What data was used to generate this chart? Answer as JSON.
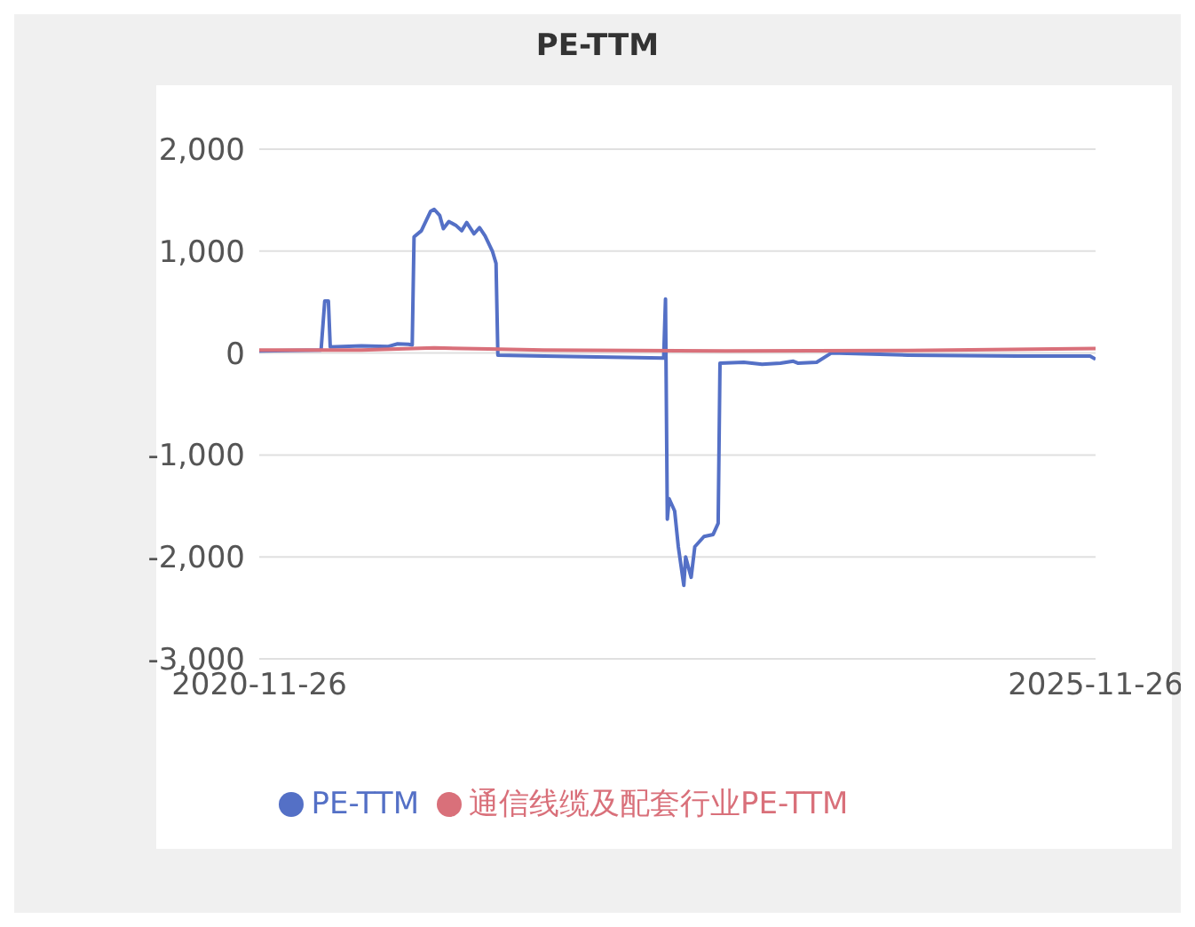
{
  "chart_data": {
    "type": "line",
    "title": "PE-TTM",
    "xlim": [
      "2020-11-26",
      "2025-11-26"
    ],
    "xticks": [
      "2020-11-26",
      "2025-11-26"
    ],
    "ylim": [
      -3000,
      2000
    ],
    "yticks": [
      {
        "value": -3000,
        "label": "-3,000"
      },
      {
        "value": -2000,
        "label": "-2,000"
      },
      {
        "value": -1000,
        "label": "-1,000"
      },
      {
        "value": 0,
        "label": "0"
      },
      {
        "value": 1000,
        "label": "1,000"
      },
      {
        "value": 2000,
        "label": "2,000"
      }
    ],
    "grid": "y",
    "legend": "bottom",
    "marker": "none",
    "line_style": "solid",
    "series": [
      {
        "name": "PE-TTM",
        "color": "#5470c6",
        "x": [
          "2020-11-26",
          "2021-04-10",
          "2021-04-18",
          "2021-04-26",
          "2021-04-30",
          "2021-07-07",
          "2021-09-04",
          "2021-09-24",
          "2021-10-18",
          "2021-10-26",
          "2021-10-30",
          "2021-11-15",
          "2021-12-05",
          "2021-12-13",
          "2021-12-25",
          "2022-01-02",
          "2022-01-14",
          "2022-01-30",
          "2022-02-11",
          "2022-02-22",
          "2022-03-10",
          "2022-03-22",
          "2022-04-03",
          "2022-04-19",
          "2022-04-27",
          "2022-05-01",
          "2022-08-09",
          "2023-04-28",
          "2023-05-02",
          "2023-05-06",
          "2023-05-10",
          "2023-05-22",
          "2023-05-30",
          "2023-06-11",
          "2023-06-15",
          "2023-06-27",
          "2023-07-05",
          "2023-07-25",
          "2023-08-14",
          "2023-08-25",
          "2023-08-29",
          "2023-10-20",
          "2023-11-29",
          "2024-01-08",
          "2024-02-05",
          "2024-02-16",
          "2024-03-27",
          "2024-04-28",
          "2024-10-12",
          "2025-06-08",
          "2025-11-14",
          "2025-11-26"
        ],
        "values": [
          20,
          30,
          510,
          510,
          60,
          70,
          65,
          90,
          85,
          80,
          1140,
          1200,
          1390,
          1410,
          1350,
          1220,
          1290,
          1250,
          1200,
          1280,
          1170,
          1230,
          1150,
          1000,
          880,
          -20,
          -30,
          -50,
          530,
          -1630,
          -1430,
          -1550,
          -1900,
          -2280,
          -2000,
          -2200,
          -1900,
          -1800,
          -1780,
          -1670,
          -100,
          -90,
          -110,
          -100,
          -80,
          -100,
          -90,
          0,
          -20,
          -30,
          -30,
          -60
        ]
      },
      {
        "name": "通信线缆及配套行业PE-TTM",
        "color": "#d9707a",
        "x": [
          "2020-11-26",
          "2021-07-07",
          "2021-12-13",
          "2022-04-11",
          "2022-08-09",
          "2023-09-10",
          "2024-10-12",
          "2025-08-26",
          "2025-11-26"
        ],
        "values": [
          30,
          30,
          50,
          40,
          30,
          20,
          25,
          40,
          45
        ]
      }
    ]
  }
}
